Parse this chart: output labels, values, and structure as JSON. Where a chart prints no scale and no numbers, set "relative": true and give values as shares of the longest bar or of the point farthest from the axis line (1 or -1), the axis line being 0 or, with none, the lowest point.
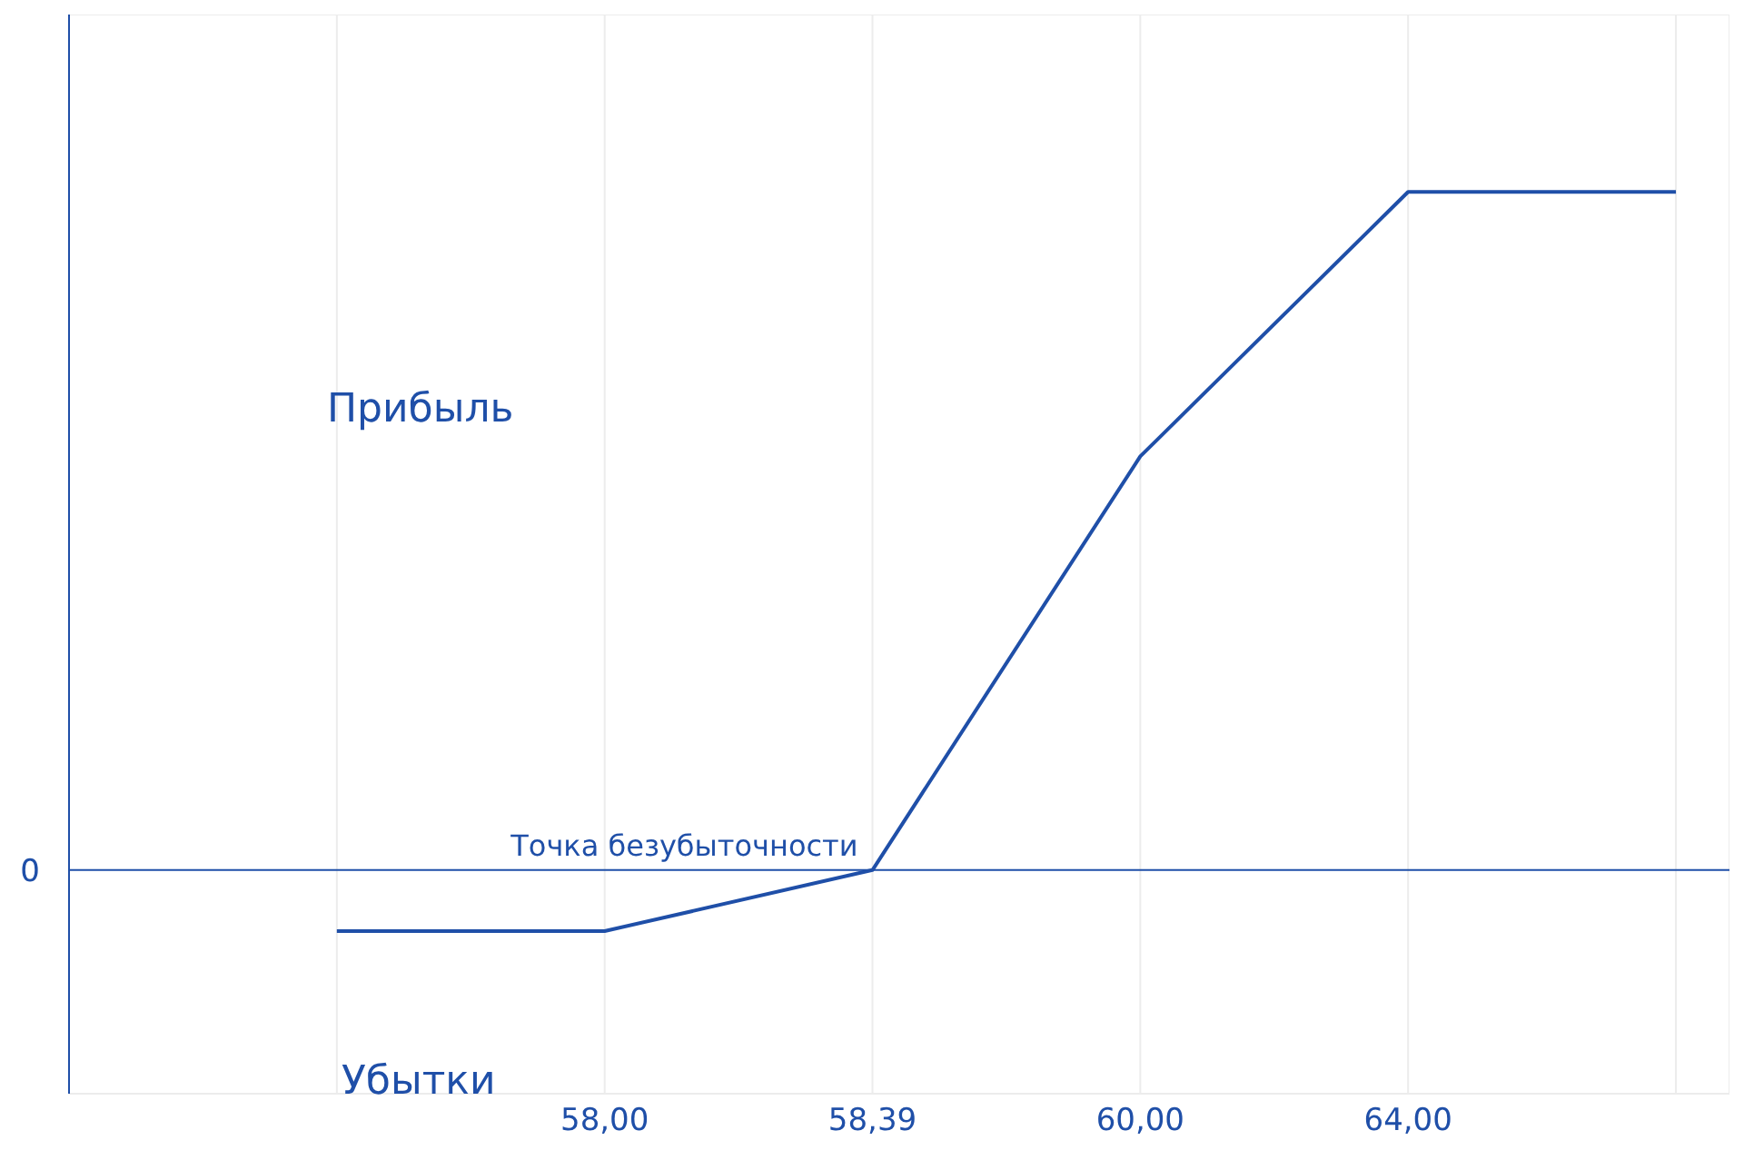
{
  "chart_data": {
    "type": "line",
    "relative": true,
    "categories": [
      null,
      "58,00",
      "58,39",
      "60,00",
      "64,00",
      null
    ],
    "series": [
      {
        "color": "#1f4fa8",
        "values": [
          -0.09,
          -0.09,
          0,
          0.61,
          1,
          1
        ]
      }
    ],
    "ref_lines": [
      {
        "axis": "y",
        "value": 0,
        "label": "0",
        "color": "#1f4fa8"
      }
    ],
    "annotations": [
      "Прибыль",
      "Убытки",
      {
        "text": "Точка безубыточности",
        "x": "58,39",
        "y": 0
      }
    ],
    "grid": true,
    "marker": "none",
    "line_style": "solid"
  }
}
